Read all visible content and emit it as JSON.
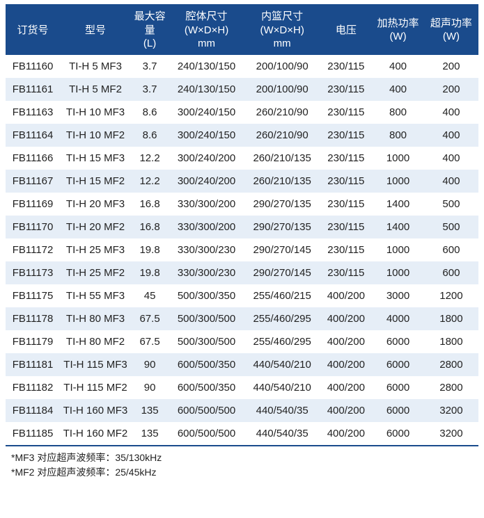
{
  "table": {
    "header_bg": "#1a4b8c",
    "header_fg": "#ffffff",
    "row_bg_odd": "#ffffff",
    "row_bg_even": "#e6eef7",
    "border_color": "#1a4b8c",
    "columns": [
      "订货号",
      "型号",
      "最大容量 (L)",
      "腔体尺寸 (W×D×H) mm",
      "内篮尺寸 (W×D×H) mm",
      "电压",
      "加热功率 (W)",
      "超声功率 (W)"
    ],
    "rows": [
      [
        "FB11160",
        "TI-H 5 MF3",
        "3.7",
        "240/130/150",
        "200/100/90",
        "230/115",
        "400",
        "200"
      ],
      [
        "FB11161",
        "TI-H 5 MF2",
        "3.7",
        "240/130/150",
        "200/100/90",
        "230/115",
        "400",
        "200"
      ],
      [
        "FB11163",
        "TI-H 10 MF3",
        "8.6",
        "300/240/150",
        "260/210/90",
        "230/115",
        "800",
        "400"
      ],
      [
        "FB11164",
        "TI-H 10 MF2",
        "8.6",
        "300/240/150",
        "260/210/90",
        "230/115",
        "800",
        "400"
      ],
      [
        "FB11166",
        "TI-H 15 MF3",
        "12.2",
        "300/240/200",
        "260/210/135",
        "230/115",
        "1000",
        "400"
      ],
      [
        "FB11167",
        "TI-H 15 MF2",
        "12.2",
        "300/240/200",
        "260/210/135",
        "230/115",
        "1000",
        "400"
      ],
      [
        "FB11169",
        "TI-H 20 MF3",
        "16.8",
        "330/300/200",
        "290/270/135",
        "230/115",
        "1400",
        "500"
      ],
      [
        "FB11170",
        "TI-H 20 MF2",
        "16.8",
        "330/300/200",
        "290/270/135",
        "230/115",
        "1400",
        "500"
      ],
      [
        "FB11172",
        "TI-H 25 MF3",
        "19.8",
        "330/300/230",
        "290/270/145",
        "230/115",
        "1000",
        "600"
      ],
      [
        "FB11173",
        "TI-H 25 MF2",
        "19.8",
        "330/300/230",
        "290/270/145",
        "230/115",
        "1000",
        "600"
      ],
      [
        "FB11175",
        "TI-H 55 MF3",
        "45",
        "500/300/350",
        "255/460/215",
        "400/200",
        "3000",
        "1200"
      ],
      [
        "FB11178",
        "TI-H 80 MF3",
        "67.5",
        "500/300/500",
        "255/460/295",
        "400/200",
        "4000",
        "1800"
      ],
      [
        "FB11179",
        "TI-H 80 MF2",
        "67.5",
        "500/300/500",
        "255/460/295",
        "400/200",
        "6000",
        "1800"
      ],
      [
        "FB11181",
        "TI-H 115 MF3",
        "90",
        "600/500/350",
        "440/540/210",
        "400/200",
        "6000",
        "2800"
      ],
      [
        "FB11182",
        "TI-H 115 MF2",
        "90",
        "600/500/350",
        "440/540/210",
        "400/200",
        "6000",
        "2800"
      ],
      [
        "FB11184",
        "TI-H 160 MF3",
        "135",
        "600/500/500",
        "440/540/35",
        "400/200",
        "6000",
        "3200"
      ],
      [
        "FB11185",
        "TI-H 160 MF2",
        "135",
        "600/500/500",
        "440/540/35",
        "400/200",
        "6000",
        "3200"
      ]
    ]
  },
  "footnotes": [
    "*MF3 对应超声波频率：35/130kHz",
    "*MF2 对应超声波频率：25/45kHz"
  ]
}
